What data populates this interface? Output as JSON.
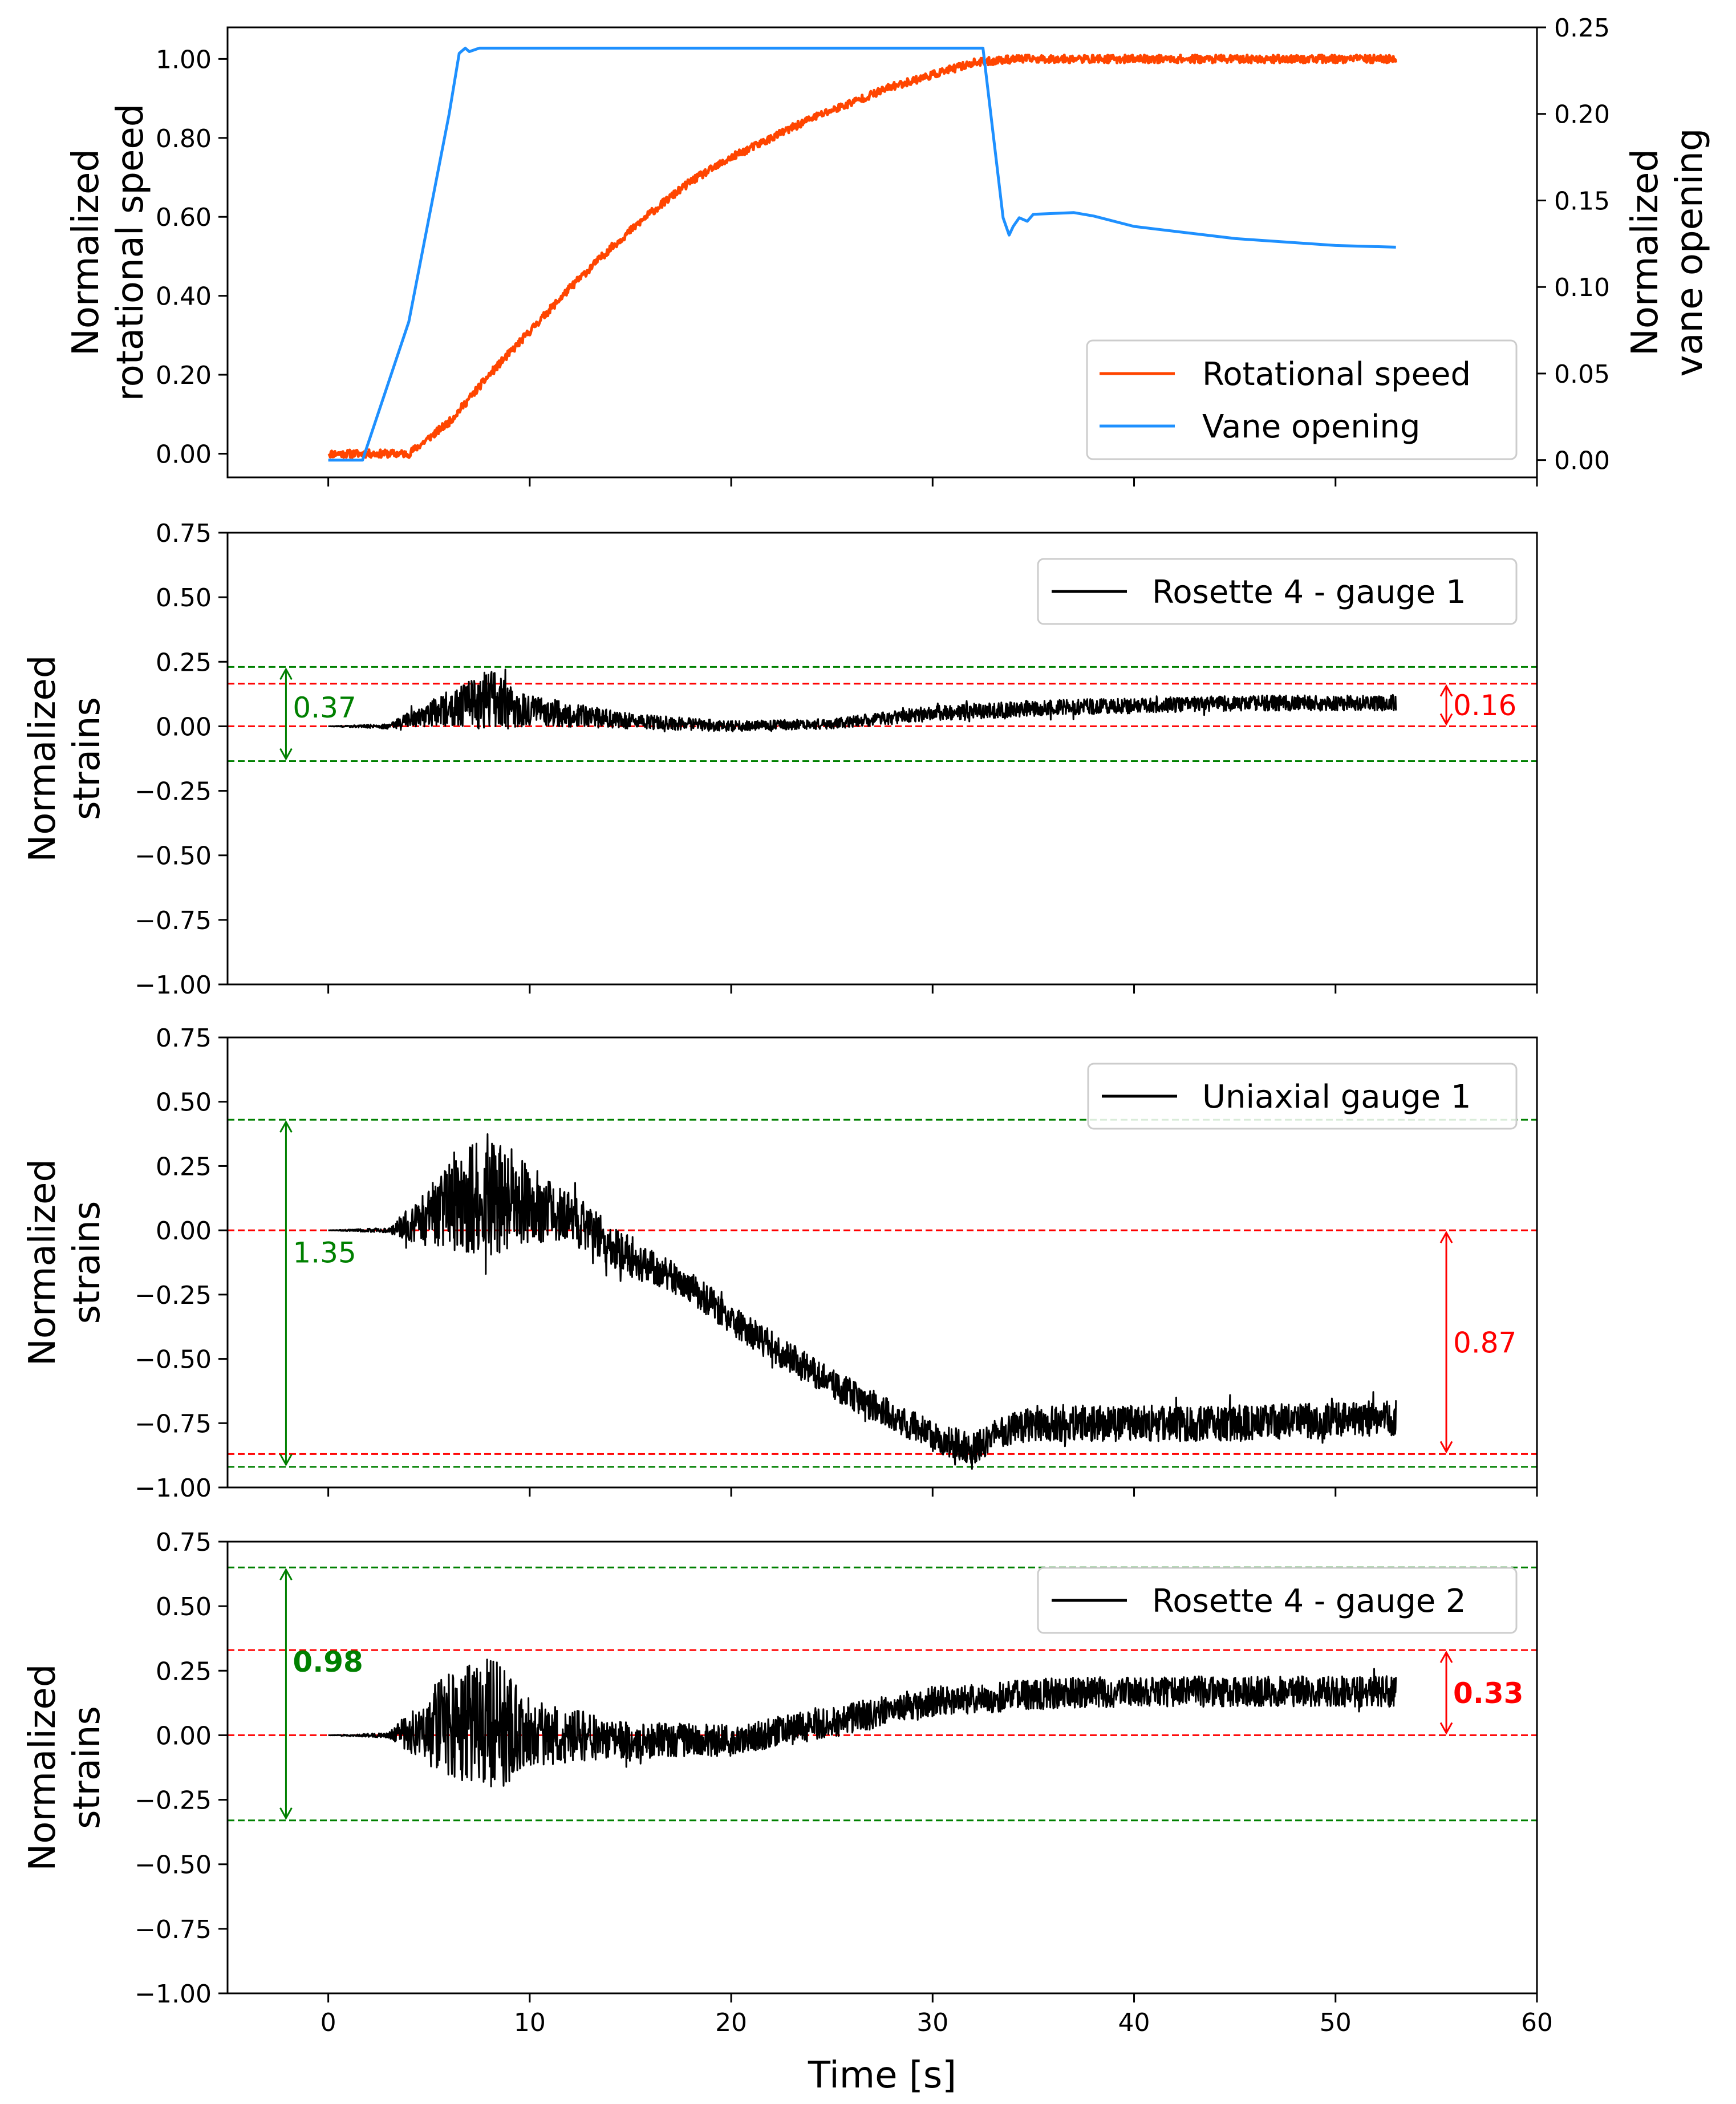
{
  "chart_data": [
    {
      "type": "line",
      "id": "speed-vane",
      "xlim": [
        -5,
        60
      ],
      "ylim": [
        -0.06,
        1.08
      ],
      "y2lim": [
        -0.01,
        0.25
      ],
      "yticks": [
        "0.00",
        "0.20",
        "0.40",
        "0.60",
        "0.80",
        "1.00"
      ],
      "yticks_values": [
        0,
        0.2,
        0.4,
        0.6,
        0.8,
        1.0
      ],
      "y2ticks": [
        "0.00",
        "0.05",
        "0.10",
        "0.15",
        "0.20",
        "0.25"
      ],
      "y2ticks_values": [
        0,
        0.05,
        0.1,
        0.15,
        0.2,
        0.25
      ],
      "ylabel_lines": [
        "Normalized",
        "rotational speed"
      ],
      "y2label_lines": [
        "Normalized",
        "vane opening"
      ],
      "colors": {
        "speed": "#ff4500",
        "vane": "#1e90ff"
      },
      "series": [
        {
          "name": "Rotational speed",
          "axis": "left",
          "x": [
            0,
            2,
            4,
            6,
            8,
            10,
            12,
            14,
            16,
            18,
            20,
            22,
            24,
            26,
            28,
            30,
            32,
            34,
            36,
            40,
            45,
            50,
            53
          ],
          "y": [
            0,
            0,
            0,
            0.08,
            0.2,
            0.31,
            0.42,
            0.52,
            0.61,
            0.69,
            0.75,
            0.8,
            0.85,
            0.89,
            0.93,
            0.96,
            0.99,
            1.0,
            1.0,
            1.0,
            1.0,
            1.0,
            1.0
          ]
        },
        {
          "name": "Vane opening",
          "axis": "right",
          "x": [
            0,
            1.7,
            4,
            5,
            6,
            6.5,
            6.8,
            7,
            7.5,
            8,
            10,
            20,
            32.5,
            33.5,
            33.8,
            34,
            34.3,
            34.7,
            35,
            37,
            38,
            40,
            45,
            50,
            53
          ],
          "y": [
            0,
            0,
            0.08,
            0.14,
            0.2,
            0.235,
            0.238,
            0.236,
            0.238,
            0.238,
            0.238,
            0.238,
            0.238,
            0.14,
            0.13,
            0.135,
            0.14,
            0.138,
            0.142,
            0.143,
            0.141,
            0.135,
            0.128,
            0.124,
            0.123
          ]
        }
      ],
      "legend": [
        "Rotational speed",
        "Vane opening"
      ]
    },
    {
      "type": "line",
      "id": "rosette-4-gauge-1",
      "xlim": [
        -5,
        60
      ],
      "ylim": [
        -1.0,
        0.75
      ],
      "yticks": [
        "0.75",
        "0.50",
        "0.25",
        "0.00",
        "−0.25",
        "−0.50",
        "−0.75",
        "−1.00"
      ],
      "yticks_values": [
        0.75,
        0.5,
        0.25,
        0,
        -0.25,
        -0.5,
        -0.75,
        -1.0
      ],
      "ylabel_lines": [
        "Normalized",
        "strains"
      ],
      "legend": "Rosette 4 - gauge 1",
      "series": [
        {
          "name": "Rosette 4 - gauge 1",
          "x": [
            0,
            3,
            5,
            7,
            8,
            10,
            15,
            20,
            25,
            30,
            35,
            40,
            45,
            50,
            53
          ],
          "y": [
            0,
            0,
            0.05,
            0.09,
            0.1,
            0.06,
            0.02,
            0,
            0.01,
            0.05,
            0.07,
            0.08,
            0.09,
            0.09,
            0.09
          ],
          "amplitude": [
            0,
            0.01,
            0.05,
            0.09,
            0.12,
            0.06,
            0.03,
            0.02,
            0.02,
            0.03,
            0.03,
            0.03,
            0.03,
            0.03,
            0.03
          ]
        }
      ],
      "ref_lines": {
        "green": [
          0.23,
          -0.135
        ],
        "red": [
          0.165,
          0
        ]
      },
      "annotations": {
        "green": "0.37",
        "red": "0.16",
        "bold": false
      }
    },
    {
      "type": "line",
      "id": "uniaxial-gauge-1",
      "xlim": [
        -5,
        60
      ],
      "ylim": [
        -1.0,
        0.75
      ],
      "yticks": [
        "0.75",
        "0.50",
        "0.25",
        "0.00",
        "−0.25",
        "−0.50",
        "−0.75",
        "−1.00"
      ],
      "yticks_values": [
        0.75,
        0.5,
        0.25,
        0,
        -0.25,
        -0.5,
        -0.75,
        -1.0
      ],
      "ylabel_lines": [
        "Normalized",
        "strains"
      ],
      "legend": "Uniaxial gauge 1",
      "series": [
        {
          "name": "Uniaxial gauge 1",
          "x": [
            0,
            3,
            5,
            7,
            8,
            10,
            12,
            15,
            18,
            20,
            23,
            25,
            28,
            30,
            32,
            33,
            35,
            40,
            45,
            50,
            53
          ],
          "y": [
            0,
            0,
            0.05,
            0.12,
            0.15,
            0.1,
            0.05,
            -0.1,
            -0.22,
            -0.35,
            -0.5,
            -0.6,
            -0.72,
            -0.8,
            -0.85,
            -0.8,
            -0.75,
            -0.75,
            -0.75,
            -0.74,
            -0.73
          ],
          "amplitude": [
            0,
            0.01,
            0.12,
            0.22,
            0.25,
            0.15,
            0.1,
            0.08,
            0.06,
            0.06,
            0.06,
            0.06,
            0.06,
            0.06,
            0.06,
            0.06,
            0.07,
            0.07,
            0.07,
            0.07,
            0.07
          ]
        }
      ],
      "ref_lines": {
        "green": [
          0.43,
          -0.92
        ],
        "red": [
          0,
          -0.87
        ]
      },
      "annotations": {
        "green": "1.35",
        "red": "0.87",
        "bold": false
      }
    },
    {
      "type": "line",
      "id": "rosette-4-gauge-2",
      "xlim": [
        -5,
        60
      ],
      "ylim": [
        -1.0,
        0.75
      ],
      "yticks": [
        "0.75",
        "0.50",
        "0.25",
        "0.00",
        "−0.25",
        "−0.50",
        "−0.75",
        "−1.00"
      ],
      "yticks_values": [
        0.75,
        0.5,
        0.25,
        0,
        -0.25,
        -0.5,
        -0.75,
        -1.0
      ],
      "ylabel_lines": [
        "Normalized",
        "strains"
      ],
      "legend": "Rosette 4 - gauge 2",
      "series": [
        {
          "name": "Rosette 4 - gauge 2",
          "x": [
            0,
            3,
            5,
            7,
            8,
            10,
            15,
            20,
            25,
            28,
            30,
            35,
            40,
            45,
            50,
            53
          ],
          "y": [
            0,
            0,
            0.03,
            0.05,
            0.04,
            0.01,
            -0.02,
            -0.02,
            0.05,
            0.1,
            0.13,
            0.16,
            0.17,
            0.17,
            0.17,
            0.17
          ],
          "amplitude": [
            0,
            0.01,
            0.15,
            0.25,
            0.28,
            0.13,
            0.07,
            0.06,
            0.06,
            0.06,
            0.06,
            0.06,
            0.06,
            0.06,
            0.06,
            0.06
          ]
        }
      ],
      "ref_lines": {
        "green": [
          0.65,
          -0.33
        ],
        "red": [
          0.33,
          0
        ]
      },
      "annotations": {
        "green": "0.98",
        "red": "0.33",
        "bold": true
      }
    }
  ],
  "xaxis": {
    "ticks": [
      "0",
      "10",
      "20",
      "30",
      "40",
      "50",
      "60"
    ],
    "tick_values": [
      0,
      10,
      20,
      30,
      40,
      50,
      60
    ],
    "label": "Time [s]"
  },
  "colors": {
    "signal": "#000000",
    "green": "#008000",
    "red": "#ff0000"
  }
}
